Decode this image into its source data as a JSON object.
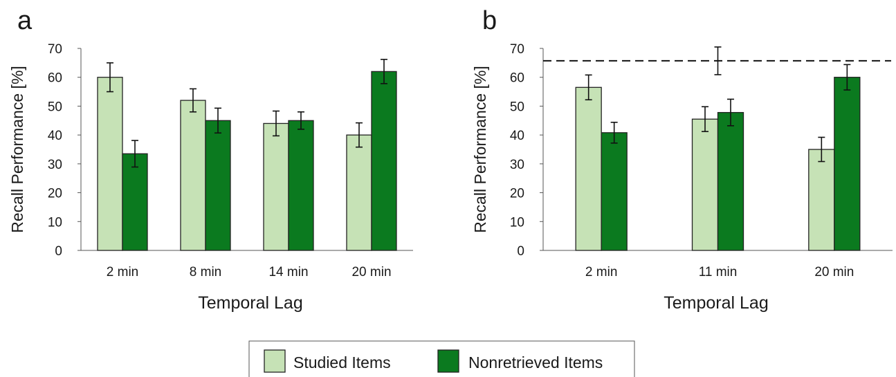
{
  "legend": {
    "items": [
      {
        "label": "Studied Items",
        "color": "#c6e2b6"
      },
      {
        "label": "Nonretrieved Items",
        "color": "#0b7a1f"
      }
    ],
    "placement": "bottom-center"
  },
  "chart_data": [
    {
      "panel_label": "a",
      "type": "bar",
      "categories": [
        "2 min",
        "8 min",
        "14 min",
        "20 min"
      ],
      "series": [
        {
          "name": "Studied Items",
          "color": "#c6e2b6",
          "values": [
            60,
            52,
            44,
            40
          ],
          "errors": [
            5,
            4,
            4.3,
            4.2
          ]
        },
        {
          "name": "Nonretrieved Items",
          "color": "#0b7a1f",
          "values": [
            33.5,
            45,
            45,
            62
          ],
          "errors": [
            4.6,
            4.3,
            3,
            4.2
          ]
        }
      ],
      "yticks": [
        0,
        10,
        20,
        30,
        40,
        50,
        60,
        70
      ],
      "xlabel": "Temporal Lag",
      "ylabel": "Recall Performance [%]",
      "ylim": [
        0,
        70
      ],
      "grid": false
    },
    {
      "panel_label": "b",
      "type": "bar",
      "categories": [
        "2 min",
        "11 min",
        "20 min"
      ],
      "series": [
        {
          "name": "Studied Items",
          "color": "#c6e2b6",
          "values": [
            56.5,
            45.5,
            35
          ],
          "errors": [
            4.3,
            4.3,
            4.2
          ]
        },
        {
          "name": "Nonretrieved Items",
          "color": "#0b7a1f",
          "values": [
            40.8,
            47.8,
            60
          ],
          "errors": [
            3.6,
            4.6,
            4.4
          ]
        }
      ],
      "reference_line": {
        "value": 65.7,
        "style": "dashed",
        "error": 4.8,
        "error_category": "11 min"
      },
      "yticks": [
        0,
        10,
        20,
        30,
        40,
        50,
        60,
        70
      ],
      "xlabel": "Temporal Lag",
      "ylabel": "Recall Performance [%]",
      "ylim": [
        0,
        70
      ],
      "grid": false
    }
  ]
}
